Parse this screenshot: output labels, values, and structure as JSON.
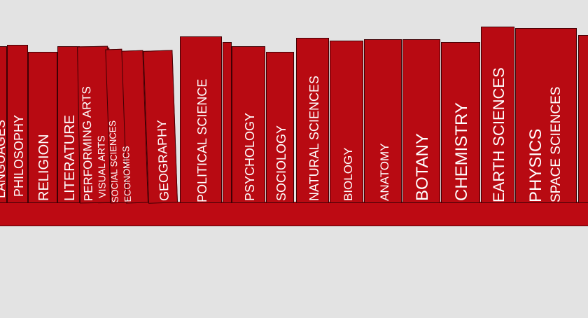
{
  "colors": {
    "background": "#e3e3e3",
    "book": "#b80a12",
    "shelf": "#bd0a13",
    "outline": "#3f0004",
    "text": "#ffffff"
  },
  "books": [
    {
      "id": "languages",
      "lines": [
        "LANGUAGES"
      ]
    },
    {
      "id": "philosophy",
      "lines": [
        "PHILOSOPHY"
      ]
    },
    {
      "id": "religion",
      "lines": [
        "RELIGION"
      ]
    },
    {
      "id": "literature",
      "lines": [
        "LITERATURE"
      ]
    },
    {
      "id": "performing-arts",
      "lines": [
        "PERFORMING ARTS",
        "VISUAL ARTS"
      ]
    },
    {
      "id": "social-sciences",
      "lines": [
        "SOCIAL SCIENCES",
        "ECONOMICS"
      ]
    },
    {
      "id": "geography",
      "lines": [
        "GEOGRAPHY"
      ]
    },
    {
      "id": "political-science",
      "lines": [
        "POLITICAL SCIENCE"
      ]
    },
    {
      "id": "psychology",
      "lines": [
        "PSYCHOLOGY"
      ]
    },
    {
      "id": "sociology",
      "lines": [
        "SOCIOLOGY"
      ]
    },
    {
      "id": "natural-sciences",
      "lines": [
        "NATURAL SCIENCES"
      ]
    },
    {
      "id": "biology",
      "lines": [
        "BIOLOGY"
      ]
    },
    {
      "id": "anatomy",
      "lines": [
        "ANATOMY"
      ]
    },
    {
      "id": "botany",
      "lines": [
        "BOTANY"
      ]
    },
    {
      "id": "chemistry",
      "lines": [
        "CHEMISTRY"
      ]
    },
    {
      "id": "earth-sciences",
      "lines": [
        "EARTH SCIENCES"
      ]
    },
    {
      "id": "physics",
      "lines": [
        "PHYSICS",
        "SPACE SCIENCES"
      ]
    }
  ]
}
